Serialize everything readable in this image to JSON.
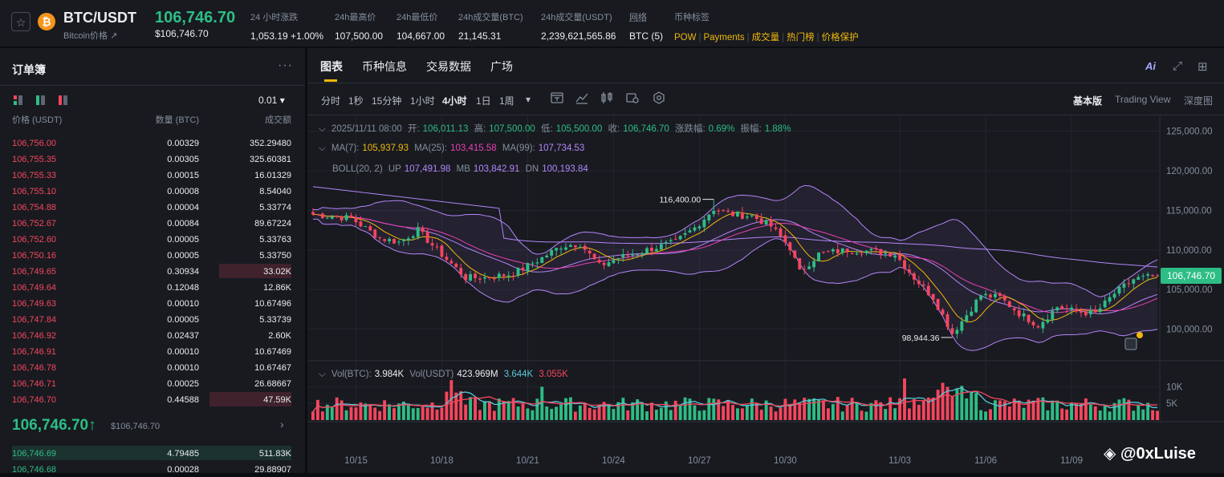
{
  "header": {
    "pair": "BTC/USDT",
    "pair_sub": "Bitcoin价格 ↗",
    "last_price": "106,746.70",
    "last_price_usd": "$106,746.70",
    "stats": [
      {
        "label": "24 小时涨跌",
        "value": "1,053.19 +1.00%",
        "color": "#2ebd85"
      },
      {
        "label": "24h最高价",
        "value": "107,500.00"
      },
      {
        "label": "24h最低价",
        "value": "104,667.00"
      },
      {
        "label": "24h成交量(BTC)",
        "value": "21,145.31"
      },
      {
        "label": "24h成交量(USDT)",
        "value": "2,239,621,565.86"
      },
      {
        "label": "网络",
        "value": "BTC (5)"
      }
    ],
    "tags_label": "币种标签",
    "tags": [
      "POW",
      "Payments",
      "成交量",
      "热门榜",
      "价格保护"
    ]
  },
  "orderbook": {
    "title": "订单簿",
    "tick": "0.01 ▾",
    "columns": [
      "价格 (USDT)",
      "数量 (BTC)",
      "成交额"
    ],
    "asks": [
      {
        "price": "106,756.00",
        "qty": "0.00329",
        "total": "352.29480"
      },
      {
        "price": "106,755.35",
        "qty": "0.00305",
        "total": "325.60381"
      },
      {
        "price": "106,755.33",
        "qty": "0.00015",
        "total": "16.01329"
      },
      {
        "price": "106,755.10",
        "qty": "0.00008",
        "total": "8.54040"
      },
      {
        "price": "106,754.88",
        "qty": "0.00004",
        "total": "5.33774"
      },
      {
        "price": "106,752.67",
        "qty": "0.00084",
        "total": "89.67224"
      },
      {
        "price": "106,752.60",
        "qty": "0.00005",
        "total": "5.33763"
      },
      {
        "price": "106,750.16",
        "qty": "0.00005",
        "total": "5.33750"
      },
      {
        "price": "106,749.65",
        "qty": "0.30934",
        "total": "33.02K",
        "depth": 0.3
      },
      {
        "price": "106,749.64",
        "qty": "0.12048",
        "total": "12.86K"
      },
      {
        "price": "106,749.63",
        "qty": "0.00010",
        "total": "10.67496"
      },
      {
        "price": "106,747.84",
        "qty": "0.00005",
        "total": "5.33739"
      },
      {
        "price": "106,746.92",
        "qty": "0.02437",
        "total": "2.60K"
      },
      {
        "price": "106,746.91",
        "qty": "0.00010",
        "total": "10.67469"
      },
      {
        "price": "106,746.78",
        "qty": "0.00010",
        "total": "10.67467"
      },
      {
        "price": "106,746.71",
        "qty": "0.00025",
        "total": "26.68667"
      },
      {
        "price": "106,746.70",
        "qty": "0.44588",
        "total": "47.59K",
        "depth": 0.34
      }
    ],
    "mid_price": "106,746.70↑",
    "mid_price_usd": "$106,746.70",
    "bids": [
      {
        "price": "106,746.69",
        "qty": "4.79485",
        "total": "511.83K",
        "depth": 1.0
      },
      {
        "price": "106,746.68",
        "qty": "0.00028",
        "total": "29.88907"
      }
    ]
  },
  "chart_panel": {
    "tabs": [
      "图表",
      "币种信息",
      "交易数据",
      "广场"
    ],
    "intervals": [
      "分时",
      "1秒",
      "15分钟",
      "1小时",
      "4小时",
      "1日",
      "1周"
    ],
    "active_interval": "4小时",
    "views": [
      "基本版",
      "Trading View",
      "深度图"
    ],
    "ai_label": "Ai",
    "price_tag": "106,746.70",
    "watermark": "◈ @0xLuise"
  },
  "chart_data": {
    "type": "candlestick",
    "ohlc_legend": {
      "date": "2025/11/11 08:00",
      "open_label": "开:",
      "open": "106,011.13",
      "high_label": "高:",
      "high": "107,500.00",
      "low_label": "低:",
      "low": "105,500.00",
      "close_label": "收:",
      "close": "106,746.70",
      "change_label": "涨跌幅:",
      "change": "0.69%",
      "amp_label": "振幅:",
      "amp": "1.88%"
    },
    "ma_legend": [
      {
        "label": "MA(7):",
        "value": "105,937.93",
        "color": "#f0b90b"
      },
      {
        "label": "MA(25):",
        "value": "103,415.58",
        "color": "#eb40b5"
      },
      {
        "label": "MA(99):",
        "value": "107,734.53",
        "color": "#b385f8"
      }
    ],
    "boll_legend": {
      "label": "BOLL(20, 2)",
      "up_label": "UP",
      "up": "107,491.98",
      "mb_label": "MB",
      "mb": "103,842.91",
      "dn_label": "DN",
      "dn": "100,193.84",
      "color": "#b385f8"
    },
    "vol_legend": {
      "vol_label": "Vol(BTC):",
      "vol": "3.984K",
      "vol_usdt_label": "Vol(USDT)",
      "vol_usdt": "423.969M",
      "ma5": "3.644K",
      "ma10": "3.055K"
    },
    "price_axis": [
      "125,000.00",
      "120,000.00",
      "115,000.00",
      "110,000.00",
      "105,000.00",
      "100,000.00"
    ],
    "price_axis_values": [
      125000,
      120000,
      115000,
      110000,
      105000,
      100000
    ],
    "volume_axis": [
      "10K",
      "5K"
    ],
    "volume_axis_values": [
      10000,
      5000
    ],
    "x_labels": [
      "10/15",
      "10/18",
      "10/21",
      "10/24",
      "10/27",
      "10/30",
      "11/03",
      "11/06",
      "11/09"
    ],
    "x_label_index": [
      9,
      27,
      45,
      63,
      81,
      99,
      123,
      141,
      159
    ],
    "annotations": [
      {
        "text": "116,400.00",
        "index": 84,
        "value": 116400,
        "side": "left"
      },
      {
        "text": "98,944.36",
        "index": 134,
        "value": 98944.36,
        "side": "left"
      }
    ],
    "anchors": [
      [
        0,
        114500
      ],
      [
        8,
        114000
      ],
      [
        14,
        111500
      ],
      [
        18,
        111000
      ],
      [
        22,
        112500
      ],
      [
        26,
        110000
      ],
      [
        32,
        106500
      ],
      [
        36,
        106500
      ],
      [
        42,
        107000
      ],
      [
        48,
        109000
      ],
      [
        52,
        110500
      ],
      [
        56,
        110800
      ],
      [
        60,
        108000
      ],
      [
        64,
        109000
      ],
      [
        70,
        110000
      ],
      [
        76,
        111000
      ],
      [
        80,
        112800
      ],
      [
        84,
        115200
      ],
      [
        88,
        114500
      ],
      [
        92,
        114300
      ],
      [
        96,
        113000
      ],
      [
        100,
        110300
      ],
      [
        102,
        107200
      ],
      [
        106,
        109500
      ],
      [
        112,
        110000
      ],
      [
        118,
        109800
      ],
      [
        122,
        109500
      ],
      [
        126,
        106500
      ],
      [
        130,
        104000
      ],
      [
        134,
        99500
      ],
      [
        136,
        101000
      ],
      [
        140,
        104300
      ],
      [
        144,
        104000
      ],
      [
        148,
        102000
      ],
      [
        152,
        100500
      ],
      [
        156,
        102800
      ],
      [
        160,
        102200
      ],
      [
        164,
        102000
      ],
      [
        168,
        104500
      ],
      [
        172,
        106300
      ],
      [
        177,
        106746.7
      ]
    ],
    "volume_range": [
      1000,
      13000
    ],
    "ylim": [
      96000,
      127000
    ],
    "vol_ylim": [
      0,
      13000
    ]
  }
}
